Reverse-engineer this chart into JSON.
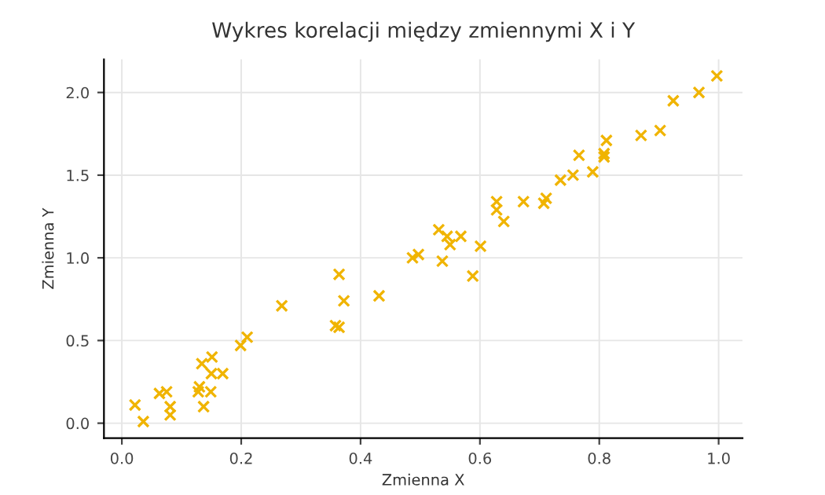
{
  "chart_data": {
    "type": "scatter",
    "title": "Wykres korelacji między zmiennymi X i Y",
    "xlabel": "Zmienna X",
    "ylabel": "Zmienna Y",
    "x": [
      0.022,
      0.036,
      0.063,
      0.075,
      0.081,
      0.081,
      0.128,
      0.13,
      0.134,
      0.137,
      0.149,
      0.15,
      0.151,
      0.169,
      0.199,
      0.21,
      0.268,
      0.358,
      0.364,
      0.364,
      0.372,
      0.431,
      0.487,
      0.497,
      0.531,
      0.537,
      0.545,
      0.55,
      0.568,
      0.588,
      0.601,
      0.628,
      0.628,
      0.64,
      0.673,
      0.707,
      0.711,
      0.735,
      0.756,
      0.766,
      0.789,
      0.808,
      0.808,
      0.812,
      0.87,
      0.902,
      0.924,
      0.967,
      0.997
    ],
    "series": [
      {
        "color": "#f0b400",
        "values": [
          0.11,
          0.01,
          0.18,
          0.19,
          0.1,
          0.05,
          0.19,
          0.22,
          0.36,
          0.1,
          0.19,
          0.3,
          0.4,
          0.3,
          0.47,
          0.52,
          0.71,
          0.59,
          0.58,
          0.9,
          0.74,
          0.77,
          1.0,
          1.02,
          1.17,
          0.98,
          1.13,
          1.08,
          1.13,
          0.89,
          1.07,
          1.34,
          1.29,
          1.22,
          1.34,
          1.33,
          1.36,
          1.47,
          1.5,
          1.62,
          1.52,
          1.63,
          1.61,
          1.71,
          1.74,
          1.77,
          1.95,
          2.0,
          2.1
        ]
      }
    ],
    "marker": "cross",
    "xlim": [
      -0.03,
      1.04
    ],
    "ylim": [
      -0.09,
      2.2
    ],
    "xticks": [
      {
        "value": 0,
        "label": "0.0"
      },
      0.2,
      0.4,
      0.6,
      0.8,
      {
        "value": 1,
        "label": "1.0"
      }
    ],
    "yticks": [
      {
        "value": 0,
        "label": "0.0"
      },
      0.5,
      {
        "value": 1,
        "label": "1.0"
      },
      1.5,
      {
        "value": 2,
        "label": "2.0"
      }
    ],
    "grid": true
  }
}
